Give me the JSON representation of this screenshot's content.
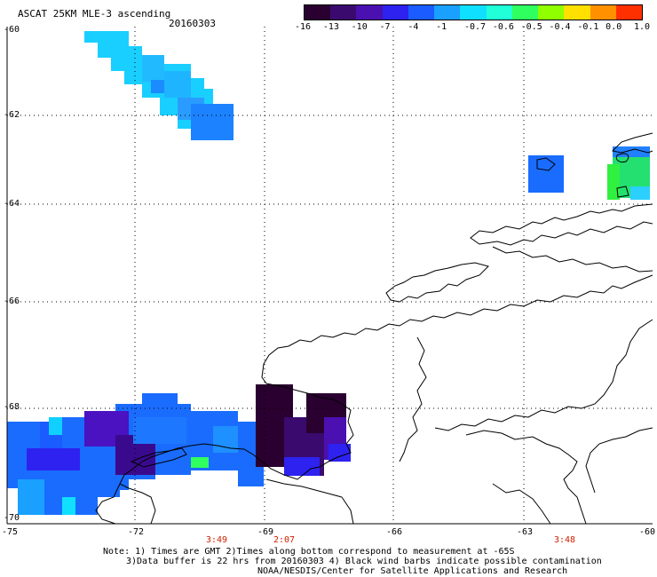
{
  "title": "ASCAT 25KM MLE-3 ascending",
  "date": "20160303",
  "colorbar": {
    "labels": [
      "-16",
      "-13",
      "-10",
      "-7",
      "-4",
      "-1",
      "-0.7",
      "-0.6",
      "-0.5",
      "-0.4",
      "-0.1",
      "0.0",
      "1.0"
    ],
    "colors": [
      "#2a0030",
      "#3a0a6e",
      "#4a10b0",
      "#2d22f0",
      "#1a5cff",
      "#1aa0ff",
      "#10e0ff",
      "#20ffd8",
      "#30ff60",
      "#90ff00",
      "#ffe000",
      "#ff9000",
      "#ff3000"
    ]
  },
  "axes": {
    "lon_labels": [
      "-75",
      "-72",
      "-69",
      "-66",
      "-63",
      "-60"
    ],
    "lat_labels": [
      "-60",
      "-62",
      "-64",
      "-66",
      "-68",
      "-70"
    ]
  },
  "times": [
    "3:49",
    "2:07",
    "3:48"
  ],
  "notes": [
    "Note: 1) Times are GMT 2)Times along bottom correspond to measurement at -65S",
    "3)Data buffer is 22 hrs from 20160303 4) Black wind barbs indicate possible contamination",
    "NOAA/NESDIS/Center for Satellite Applications and Research"
  ]
}
